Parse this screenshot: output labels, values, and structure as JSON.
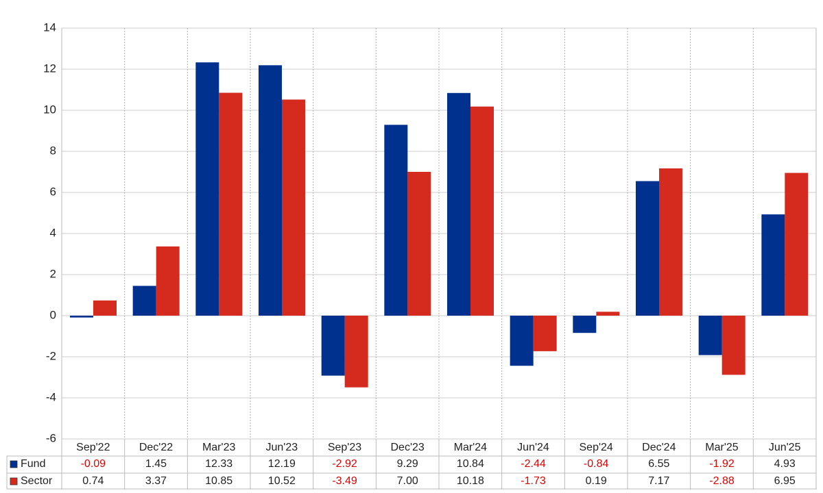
{
  "chart_data": {
    "type": "bar",
    "categories": [
      "Sep'22",
      "Dec'22",
      "Mar'23",
      "Jun'23",
      "Sep'23",
      "Dec'23",
      "Mar'24",
      "Jun'24",
      "Sep'24",
      "Dec'24",
      "Mar'25",
      "Jun'25"
    ],
    "series": [
      {
        "name": "Fund",
        "color": "#00318f",
        "values": [
          -0.09,
          1.45,
          12.33,
          12.19,
          -2.92,
          9.29,
          10.84,
          -2.44,
          -0.84,
          6.55,
          -1.92,
          4.93
        ],
        "value_labels": [
          "-0.09",
          "1.45",
          "12.33",
          "12.19",
          "-2.92",
          "9.29",
          "10.84",
          "-2.44",
          "-0.84",
          "6.55",
          "-1.92",
          "4.93"
        ]
      },
      {
        "name": "Sector",
        "color": "#d52b1e",
        "values": [
          0.74,
          3.37,
          10.85,
          10.52,
          -3.49,
          7.0,
          10.18,
          -1.73,
          0.19,
          7.17,
          -2.88,
          6.95
        ],
        "value_labels": [
          "0.74",
          "3.37",
          "10.85",
          "10.52",
          "-3.49",
          "7.00",
          "10.18",
          "-1.73",
          "0.19",
          "7.17",
          "-2.88",
          "6.95"
        ]
      }
    ],
    "ylim": [
      -6,
      14
    ],
    "yticks": [
      14,
      12,
      10,
      8,
      6,
      4,
      2,
      0,
      -2,
      -4,
      -6
    ],
    "grid": true
  }
}
